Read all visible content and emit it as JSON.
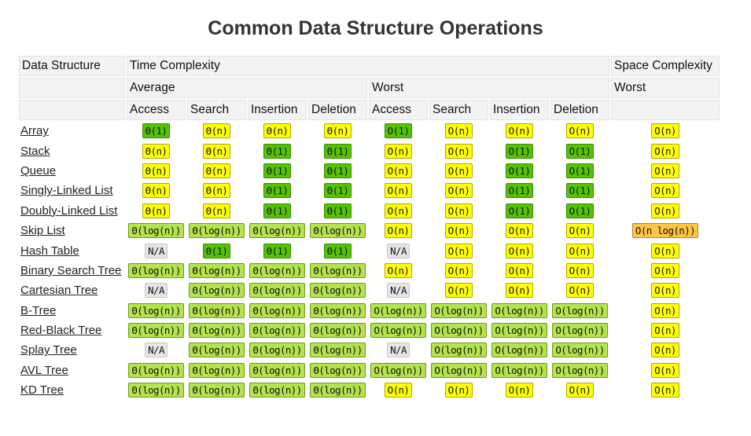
{
  "title": "Common Data Structure Operations",
  "header": {
    "data_structure": "Data Structure",
    "time_complexity": "Time Complexity",
    "space_complexity": "Space Complexity",
    "average": "Average",
    "worst": "Worst",
    "space_worst": "Worst",
    "ops": [
      "Access",
      "Search",
      "Insertion",
      "Deletion",
      "Access",
      "Search",
      "Insertion",
      "Deletion"
    ]
  },
  "colors": {
    "yellow": "#ffff00",
    "green": "#55c400",
    "lime": "#b3e34e",
    "orange": "#ffc543",
    "gray": "#e5e5e5"
  },
  "rows": [
    {
      "name": "Array",
      "cells": [
        [
          "Θ(1)",
          "green"
        ],
        [
          "Θ(n)",
          "yellow"
        ],
        [
          "Θ(n)",
          "yellow"
        ],
        [
          "Θ(n)",
          "yellow"
        ],
        [
          "O(1)",
          "green"
        ],
        [
          "O(n)",
          "yellow"
        ],
        [
          "O(n)",
          "yellow"
        ],
        [
          "O(n)",
          "yellow"
        ],
        [
          "O(n)",
          "yellow"
        ]
      ]
    },
    {
      "name": "Stack",
      "cells": [
        [
          "Θ(n)",
          "yellow"
        ],
        [
          "Θ(n)",
          "yellow"
        ],
        [
          "Θ(1)",
          "green"
        ],
        [
          "Θ(1)",
          "green"
        ],
        [
          "O(n)",
          "yellow"
        ],
        [
          "O(n)",
          "yellow"
        ],
        [
          "O(1)",
          "green"
        ],
        [
          "O(1)",
          "green"
        ],
        [
          "O(n)",
          "yellow"
        ]
      ]
    },
    {
      "name": "Queue",
      "cells": [
        [
          "Θ(n)",
          "yellow"
        ],
        [
          "Θ(n)",
          "yellow"
        ],
        [
          "Θ(1)",
          "green"
        ],
        [
          "Θ(1)",
          "green"
        ],
        [
          "O(n)",
          "yellow"
        ],
        [
          "O(n)",
          "yellow"
        ],
        [
          "O(1)",
          "green"
        ],
        [
          "O(1)",
          "green"
        ],
        [
          "O(n)",
          "yellow"
        ]
      ]
    },
    {
      "name": "Singly-Linked List",
      "cells": [
        [
          "Θ(n)",
          "yellow"
        ],
        [
          "Θ(n)",
          "yellow"
        ],
        [
          "Θ(1)",
          "green"
        ],
        [
          "Θ(1)",
          "green"
        ],
        [
          "O(n)",
          "yellow"
        ],
        [
          "O(n)",
          "yellow"
        ],
        [
          "O(1)",
          "green"
        ],
        [
          "O(1)",
          "green"
        ],
        [
          "O(n)",
          "yellow"
        ]
      ]
    },
    {
      "name": "Doubly-Linked List",
      "cells": [
        [
          "Θ(n)",
          "yellow"
        ],
        [
          "Θ(n)",
          "yellow"
        ],
        [
          "Θ(1)",
          "green"
        ],
        [
          "Θ(1)",
          "green"
        ],
        [
          "O(n)",
          "yellow"
        ],
        [
          "O(n)",
          "yellow"
        ],
        [
          "O(1)",
          "green"
        ],
        [
          "O(1)",
          "green"
        ],
        [
          "O(n)",
          "yellow"
        ]
      ]
    },
    {
      "name": "Skip List",
      "cells": [
        [
          "Θ(log(n))",
          "lime"
        ],
        [
          "Θ(log(n))",
          "lime"
        ],
        [
          "Θ(log(n))",
          "lime"
        ],
        [
          "Θ(log(n))",
          "lime"
        ],
        [
          "O(n)",
          "yellow"
        ],
        [
          "O(n)",
          "yellow"
        ],
        [
          "O(n)",
          "yellow"
        ],
        [
          "O(n)",
          "yellow"
        ],
        [
          "O(n log(n))",
          "orange"
        ]
      ]
    },
    {
      "name": "Hash Table",
      "cells": [
        [
          "N/A",
          "gray"
        ],
        [
          "Θ(1)",
          "green"
        ],
        [
          "Θ(1)",
          "green"
        ],
        [
          "Θ(1)",
          "green"
        ],
        [
          "N/A",
          "gray"
        ],
        [
          "O(n)",
          "yellow"
        ],
        [
          "O(n)",
          "yellow"
        ],
        [
          "O(n)",
          "yellow"
        ],
        [
          "O(n)",
          "yellow"
        ]
      ]
    },
    {
      "name": "Binary Search Tree",
      "cells": [
        [
          "Θ(log(n))",
          "lime"
        ],
        [
          "Θ(log(n))",
          "lime"
        ],
        [
          "Θ(log(n))",
          "lime"
        ],
        [
          "Θ(log(n))",
          "lime"
        ],
        [
          "O(n)",
          "yellow"
        ],
        [
          "O(n)",
          "yellow"
        ],
        [
          "O(n)",
          "yellow"
        ],
        [
          "O(n)",
          "yellow"
        ],
        [
          "O(n)",
          "yellow"
        ]
      ]
    },
    {
      "name": "Cartesian Tree",
      "cells": [
        [
          "N/A",
          "gray"
        ],
        [
          "Θ(log(n))",
          "lime"
        ],
        [
          "Θ(log(n))",
          "lime"
        ],
        [
          "Θ(log(n))",
          "lime"
        ],
        [
          "N/A",
          "gray"
        ],
        [
          "O(n)",
          "yellow"
        ],
        [
          "O(n)",
          "yellow"
        ],
        [
          "O(n)",
          "yellow"
        ],
        [
          "O(n)",
          "yellow"
        ]
      ]
    },
    {
      "name": "B-Tree",
      "cells": [
        [
          "Θ(log(n))",
          "lime"
        ],
        [
          "Θ(log(n))",
          "lime"
        ],
        [
          "Θ(log(n))",
          "lime"
        ],
        [
          "Θ(log(n))",
          "lime"
        ],
        [
          "O(log(n))",
          "lime"
        ],
        [
          "O(log(n))",
          "lime"
        ],
        [
          "O(log(n))",
          "lime"
        ],
        [
          "O(log(n))",
          "lime"
        ],
        [
          "O(n)",
          "yellow"
        ]
      ]
    },
    {
      "name": "Red-Black Tree",
      "cells": [
        [
          "Θ(log(n))",
          "lime"
        ],
        [
          "Θ(log(n))",
          "lime"
        ],
        [
          "Θ(log(n))",
          "lime"
        ],
        [
          "Θ(log(n))",
          "lime"
        ],
        [
          "O(log(n))",
          "lime"
        ],
        [
          "O(log(n))",
          "lime"
        ],
        [
          "O(log(n))",
          "lime"
        ],
        [
          "O(log(n))",
          "lime"
        ],
        [
          "O(n)",
          "yellow"
        ]
      ]
    },
    {
      "name": "Splay Tree",
      "cells": [
        [
          "N/A",
          "gray"
        ],
        [
          "Θ(log(n))",
          "lime"
        ],
        [
          "Θ(log(n))",
          "lime"
        ],
        [
          "Θ(log(n))",
          "lime"
        ],
        [
          "N/A",
          "gray"
        ],
        [
          "O(log(n))",
          "lime"
        ],
        [
          "O(log(n))",
          "lime"
        ],
        [
          "O(log(n))",
          "lime"
        ],
        [
          "O(n)",
          "yellow"
        ]
      ]
    },
    {
      "name": "AVL Tree",
      "cells": [
        [
          "Θ(log(n))",
          "lime"
        ],
        [
          "Θ(log(n))",
          "lime"
        ],
        [
          "Θ(log(n))",
          "lime"
        ],
        [
          "Θ(log(n))",
          "lime"
        ],
        [
          "O(log(n))",
          "lime"
        ],
        [
          "O(log(n))",
          "lime"
        ],
        [
          "O(log(n))",
          "lime"
        ],
        [
          "O(log(n))",
          "lime"
        ],
        [
          "O(n)",
          "yellow"
        ]
      ]
    },
    {
      "name": "KD Tree",
      "cells": [
        [
          "Θ(log(n))",
          "lime"
        ],
        [
          "Θ(log(n))",
          "lime"
        ],
        [
          "Θ(log(n))",
          "lime"
        ],
        [
          "Θ(log(n))",
          "lime"
        ],
        [
          "O(n)",
          "yellow"
        ],
        [
          "O(n)",
          "yellow"
        ],
        [
          "O(n)",
          "yellow"
        ],
        [
          "O(n)",
          "yellow"
        ],
        [
          "O(n)",
          "yellow"
        ]
      ]
    }
  ]
}
